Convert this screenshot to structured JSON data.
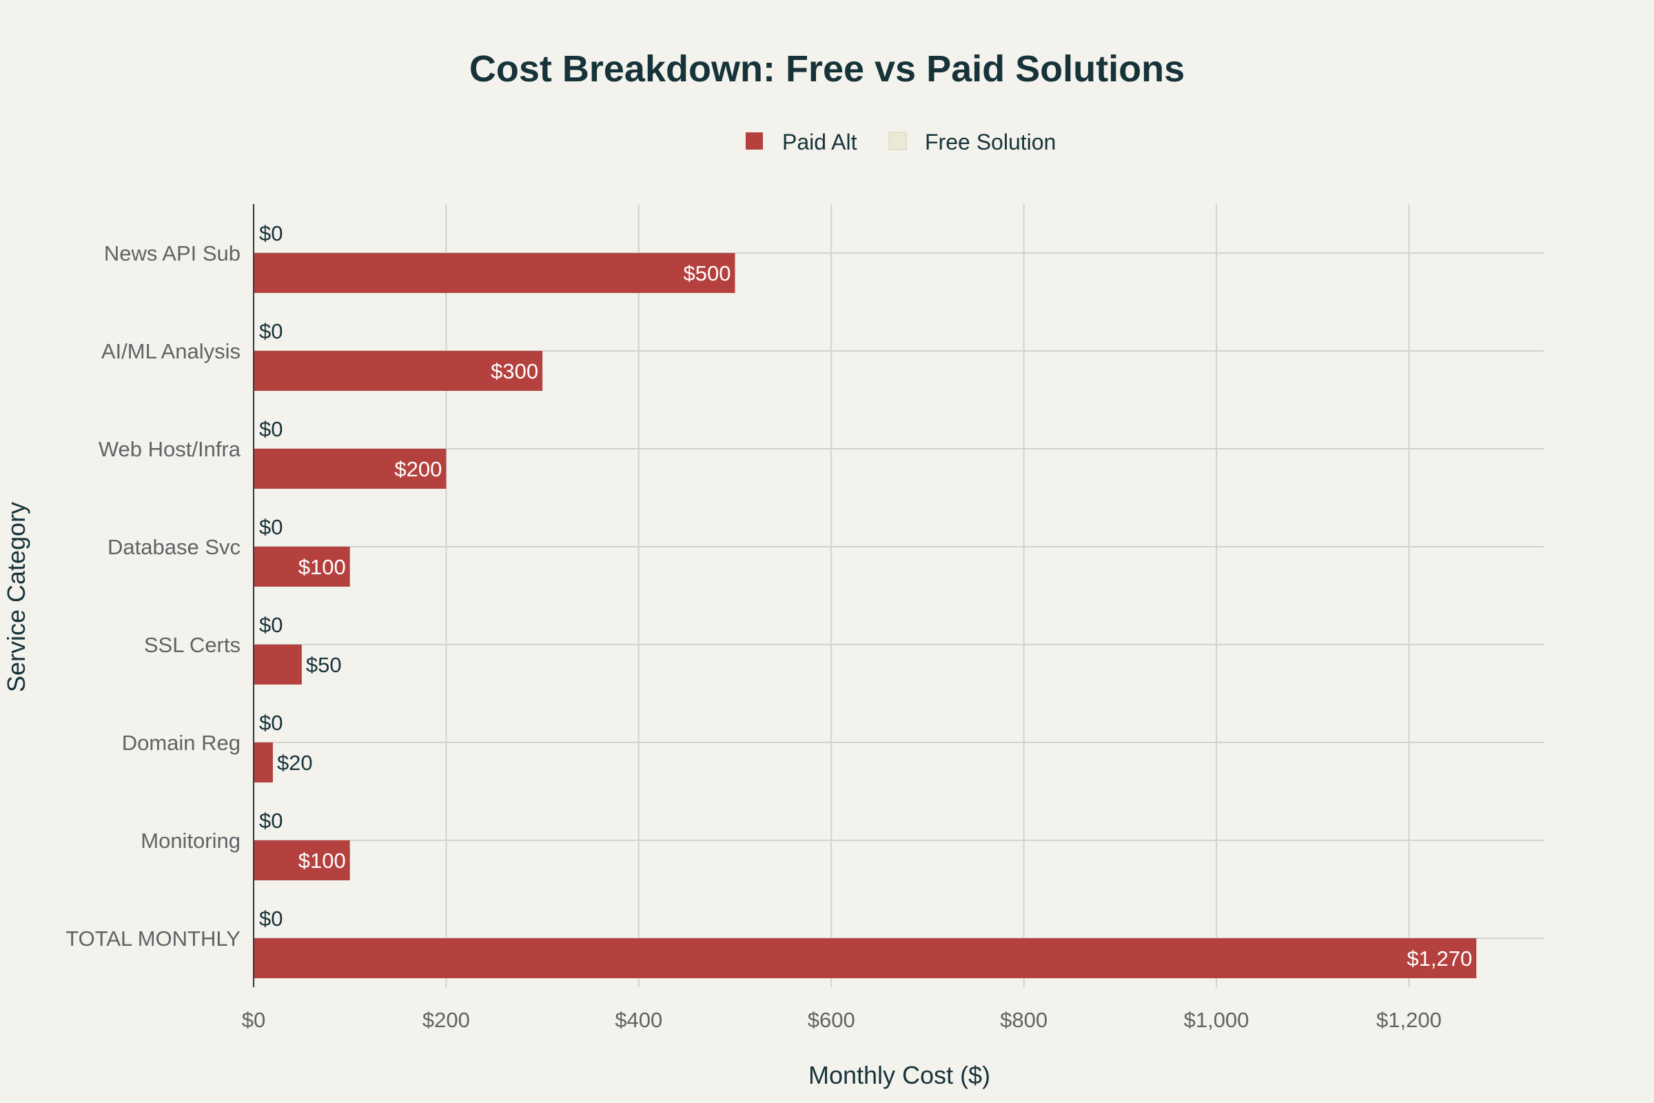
{
  "chart_data": {
    "type": "bar",
    "orientation": "horizontal",
    "title": "Cost Breakdown: Free vs Paid Solutions",
    "xlabel": "Monthly Cost ($)",
    "ylabel": "Service Category",
    "categories": [
      "News API Sub",
      "AI/ML Analysis",
      "Web Host/Infra",
      "Database Svc",
      "SSL Certs",
      "Domain Reg",
      "Monitoring",
      "TOTAL MONTHLY"
    ],
    "series": [
      {
        "name": "Paid Alt",
        "color": "#b5413f",
        "values": [
          500,
          300,
          200,
          100,
          50,
          20,
          100,
          1270
        ],
        "labels": [
          "$500",
          "$300",
          "$200",
          "$100",
          "$50",
          "$20",
          "$100",
          "$1,270"
        ]
      },
      {
        "name": "Free Solution",
        "color": "#ebe9d5",
        "values": [
          0,
          0,
          0,
          0,
          0,
          0,
          0,
          0
        ],
        "labels": [
          "$0",
          "$0",
          "$0",
          "$0",
          "$0",
          "$0",
          "$0",
          "$0"
        ]
      }
    ],
    "xlim": [
      0,
      1340
    ],
    "x_ticks": [
      0,
      200,
      400,
      600,
      800,
      1000,
      1200
    ],
    "x_tick_labels": [
      "$0",
      "$200",
      "$400",
      "$600",
      "$800",
      "$1,000",
      "$1,200"
    ],
    "grid": true,
    "legend_position": "top-center"
  }
}
